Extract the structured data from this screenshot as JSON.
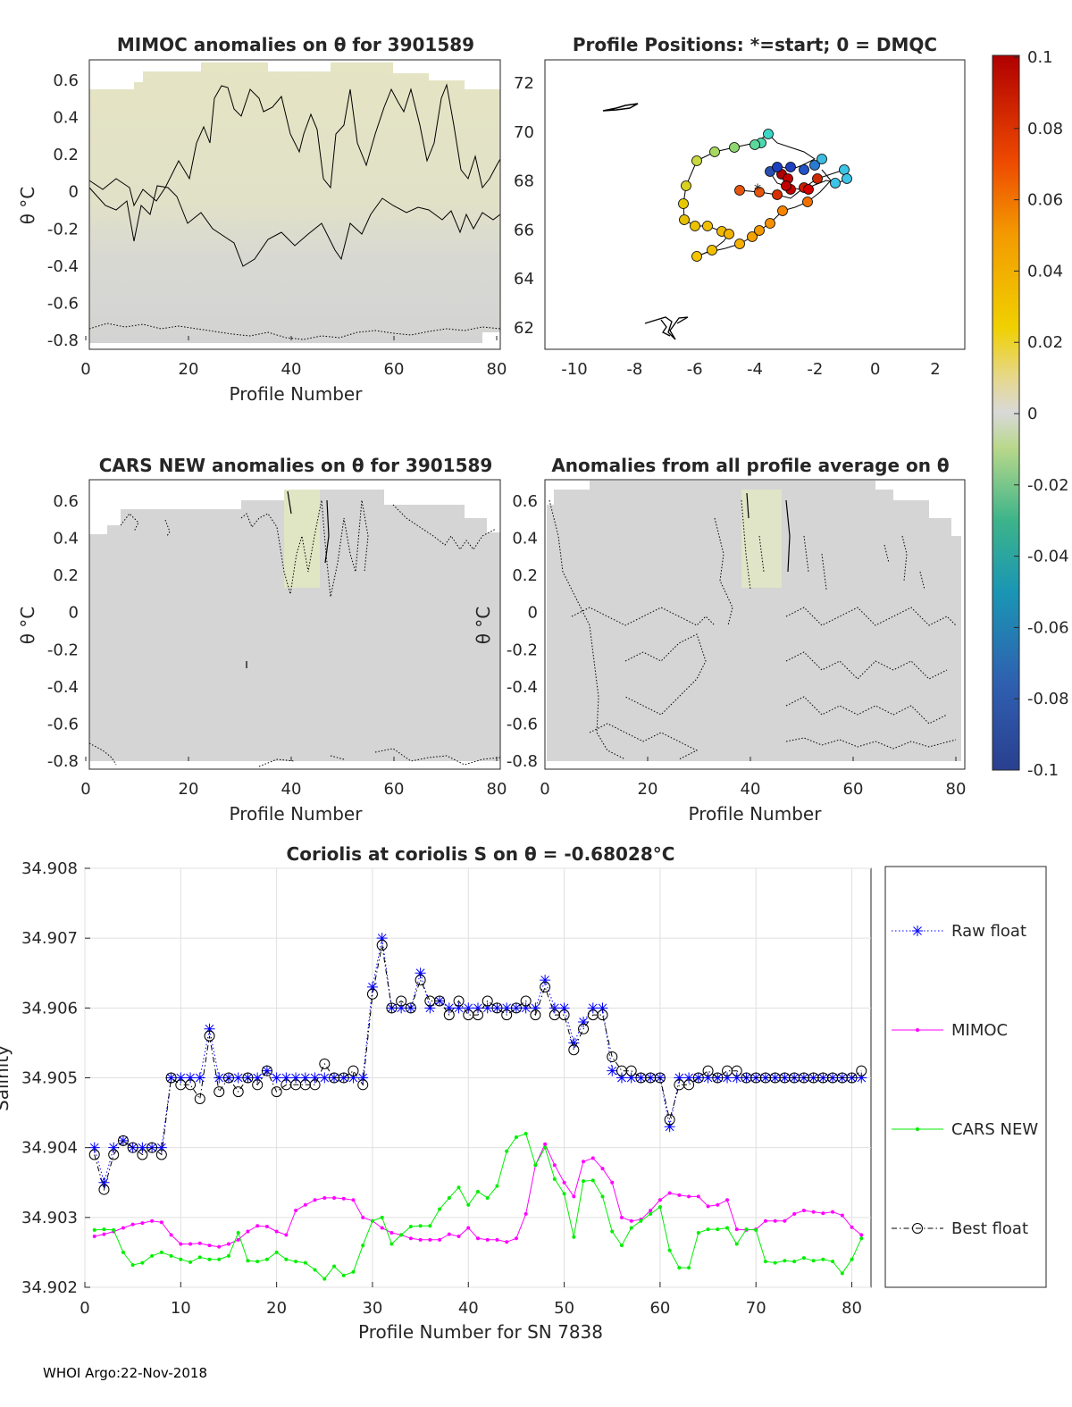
{
  "footer": "WHOI Argo:22-Nov-2018",
  "panels": {
    "mimoc": {
      "title": "MIMOC anomalies on θ  for 3901589",
      "xlabel": "Profile Number",
      "ylabel": "θ °C",
      "xticks": [
        "0",
        "20",
        "40",
        "60",
        "80"
      ],
      "yticks": [
        "0.6",
        "0.4",
        "0.2",
        "0",
        "-0.2",
        "-0.4",
        "-0.6",
        "-0.8"
      ]
    },
    "positions": {
      "title": "Profile Positions: *=start; 0 = DMQC",
      "xticks": [
        "-10",
        "-8",
        "-6",
        "-4",
        "-2",
        "0",
        "2"
      ],
      "yticks": [
        "72",
        "70",
        "68",
        "66",
        "64",
        "62"
      ]
    },
    "cars": {
      "title": "CARS NEW anomalies on θ for 3901589",
      "xlabel": "Profile Number",
      "ylabel": "θ °C",
      "xticks": [
        "0",
        "20",
        "40",
        "60",
        "80"
      ],
      "yticks": [
        "0.6",
        "0.4",
        "0.2",
        "0",
        "-0.2",
        "-0.4",
        "-0.6",
        "-0.8"
      ]
    },
    "allavg": {
      "title": "Anomalies from all profile average on θ",
      "xlabel": "Profile Number",
      "ylabel": "θ °C",
      "xticks": [
        "0",
        "20",
        "40",
        "60",
        "80"
      ],
      "yticks": [
        "0.6",
        "0.4",
        "0.2",
        "0",
        "-0.2",
        "-0.4",
        "-0.6",
        "-0.8"
      ]
    },
    "colorbar": {
      "ticks": [
        "0.1",
        "0.08",
        "0.06",
        "0.04",
        "0.02",
        "0",
        "-0.02",
        "-0.04",
        "-0.06",
        "-0.08",
        "-0.1"
      ]
    }
  },
  "chart_data": {
    "type": "line",
    "title": "Coriolis at coriolis S on θ = -0.68028°C",
    "xlabel": "Profile Number for SN 7838",
    "ylabel": "Salinity",
    "xlim": [
      0,
      82
    ],
    "ylim": [
      34.902,
      34.908
    ],
    "xticks": [
      "0",
      "10",
      "20",
      "30",
      "40",
      "50",
      "60",
      "70",
      "80"
    ],
    "yticks": [
      "34.908",
      "34.907",
      "34.906",
      "34.905",
      "34.904",
      "34.903",
      "34.902"
    ],
    "grid": true,
    "legend_position": "right",
    "series": [
      {
        "name": "Raw float",
        "color": "#0000ff",
        "marker": "asterisk",
        "style": "dotted",
        "values": [
          34.904,
          34.9035,
          34.904,
          34.9041,
          34.904,
          34.904,
          34.904,
          34.904,
          34.905,
          34.905,
          34.905,
          34.905,
          34.9057,
          34.905,
          34.905,
          34.905,
          34.905,
          34.905,
          34.9051,
          34.905,
          34.905,
          34.905,
          34.905,
          34.905,
          34.905,
          34.905,
          34.905,
          34.905,
          34.905,
          34.9063,
          34.907,
          34.906,
          34.906,
          34.906,
          34.9065,
          34.906,
          34.9061,
          34.906,
          34.906,
          34.906,
          34.906,
          34.906,
          34.906,
          34.906,
          34.906,
          34.906,
          34.906,
          34.9064,
          34.906,
          34.906,
          34.9055,
          34.9058,
          34.906,
          34.906,
          34.9051,
          34.905,
          34.905,
          34.905,
          34.905,
          34.905,
          34.9043,
          34.905,
          34.905,
          34.905,
          34.905,
          34.905,
          34.905,
          34.905,
          34.905,
          34.905,
          34.905,
          34.905,
          34.905,
          34.905,
          34.905,
          34.905,
          34.905,
          34.905,
          34.905,
          34.905,
          34.905
        ]
      },
      {
        "name": "MIMOC",
        "color": "#ff00ff",
        "marker": "dot",
        "style": "solid",
        "values": [
          34.90273,
          34.90276,
          34.9028,
          34.90285,
          34.9029,
          34.90292,
          34.90295,
          34.90293,
          34.90275,
          34.90262,
          34.90262,
          34.90263,
          34.9026,
          34.90258,
          34.90262,
          34.90268,
          34.9028,
          34.90288,
          34.90287,
          34.9028,
          34.90275,
          34.9031,
          34.90318,
          34.90325,
          34.90328,
          34.90328,
          34.90327,
          34.90325,
          34.903,
          34.90295,
          34.90285,
          34.90278,
          34.90275,
          34.9027,
          34.90268,
          34.90268,
          34.90268,
          34.90276,
          34.90273,
          34.90285,
          34.9027,
          34.90268,
          34.90268,
          34.90265,
          34.9027,
          34.90305,
          34.90375,
          34.90405,
          34.90375,
          34.9035,
          34.9033,
          34.9038,
          34.90385,
          34.9037,
          34.9035,
          34.903,
          34.90295,
          34.90297,
          34.9031,
          34.90325,
          34.90335,
          34.90332,
          34.9033,
          34.9033,
          34.90316,
          34.90318,
          34.90325,
          34.90283,
          34.90282,
          34.90283,
          34.90295,
          34.90295,
          34.90295,
          34.90305,
          34.9031,
          34.90308,
          34.90306,
          34.90308,
          34.90303,
          34.90286,
          34.90275
        ]
      },
      {
        "name": "CARS NEW",
        "color": "#00ee00",
        "marker": "dot",
        "style": "solid",
        "values": [
          34.90282,
          34.90283,
          34.90282,
          34.9025,
          34.90232,
          34.90235,
          34.90245,
          34.9025,
          34.90245,
          34.9024,
          34.90236,
          34.90243,
          34.9024,
          34.9024,
          34.90245,
          34.90278,
          34.90238,
          34.90237,
          34.9024,
          34.9025,
          34.9024,
          34.90237,
          34.90235,
          34.90225,
          34.90212,
          34.9023,
          34.90217,
          34.90222,
          34.9026,
          34.90295,
          34.903,
          34.90262,
          34.90275,
          34.90287,
          34.90288,
          34.90288,
          34.90312,
          34.90328,
          34.90343,
          34.90318,
          34.90337,
          34.90328,
          34.90345,
          34.90395,
          34.90415,
          34.9042,
          34.90375,
          34.904,
          34.90355,
          34.90334,
          34.90272,
          34.90352,
          34.90353,
          34.9033,
          34.9028,
          34.9026,
          34.90285,
          34.90295,
          34.90305,
          34.90315,
          34.90253,
          34.90228,
          34.90228,
          34.90278,
          34.90283,
          34.90283,
          34.90285,
          34.90262,
          34.90283,
          34.90282,
          34.90237,
          34.90235,
          34.90238,
          34.90237,
          34.90242,
          34.90238,
          34.9024,
          34.90237,
          34.9022,
          34.9024,
          34.9027
        ]
      },
      {
        "name": "Best float",
        "color": "#000000",
        "marker": "circle",
        "style": "dashdot",
        "values": [
          34.9039,
          34.9034,
          34.9039,
          34.9041,
          34.904,
          34.9039,
          34.904,
          34.9039,
          34.905,
          34.9049,
          34.9049,
          34.9047,
          34.9056,
          34.9048,
          34.905,
          34.9048,
          34.905,
          34.9049,
          34.9051,
          34.9048,
          34.9049,
          34.9049,
          34.9049,
          34.9049,
          34.9052,
          34.905,
          34.905,
          34.9051,
          34.9049,
          34.9062,
          34.9069,
          34.906,
          34.9061,
          34.906,
          34.9064,
          34.9061,
          34.9061,
          34.9059,
          34.9061,
          34.9059,
          34.9059,
          34.9061,
          34.906,
          34.9059,
          34.906,
          34.9061,
          34.9059,
          34.9063,
          34.9059,
          34.9059,
          34.9054,
          34.9057,
          34.9059,
          34.9059,
          34.9053,
          34.9051,
          34.9051,
          34.905,
          34.905,
          34.905,
          34.9044,
          34.9049,
          34.9049,
          34.905,
          34.9051,
          34.905,
          34.9051,
          34.9051,
          34.905,
          34.905,
          34.905,
          34.905,
          34.905,
          34.905,
          34.905,
          34.905,
          34.905,
          34.905,
          34.905,
          34.905,
          34.9051
        ]
      }
    ]
  }
}
